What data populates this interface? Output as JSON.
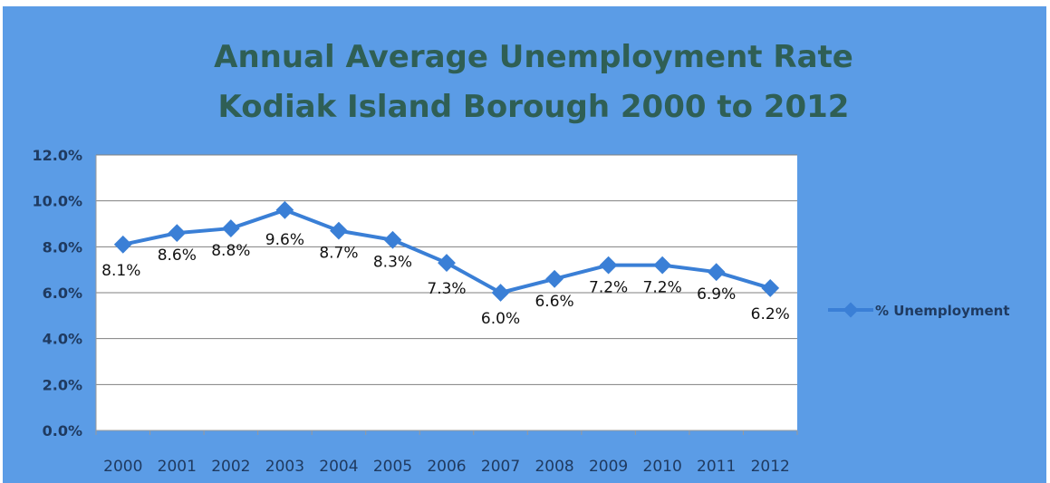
{
  "chart_data": {
    "type": "line",
    "title_lines": [
      "Annual Average Unemployment Rate",
      "Kodiak Island Borough 2000 to 2012"
    ],
    "categories": [
      "2000",
      "2001",
      "2002",
      "2003",
      "2004",
      "2005",
      "2006",
      "2007",
      "2008",
      "2009",
      "2010",
      "2011",
      "2012"
    ],
    "series": [
      {
        "name": "% Unemployment",
        "values": [
          8.1,
          8.6,
          8.8,
          9.6,
          8.7,
          8.3,
          7.3,
          6.0,
          6.6,
          7.2,
          7.2,
          6.9,
          6.2
        ],
        "labels": [
          "8.1%",
          "8.6%",
          "8.8%",
          "9.6%",
          "8.7%",
          "8.3%",
          "7.3%",
          "6.0%",
          "6.6%",
          "7.2%",
          "7.2%",
          "6.9%",
          "6.2%"
        ],
        "color": "#3a7fd6"
      }
    ],
    "y_ticks": [
      "0.0%",
      "2.0%",
      "4.0%",
      "6.0%",
      "8.0%",
      "10.0%",
      "12.0%"
    ],
    "ylim": [
      0,
      12
    ],
    "y_step": 2,
    "grid": true,
    "legend_position": "right",
    "colors": {
      "background": "#5b9ce6",
      "plot_area": "#ffffff",
      "title": "#2f5f55",
      "axis_text": "#1f3a60"
    }
  }
}
